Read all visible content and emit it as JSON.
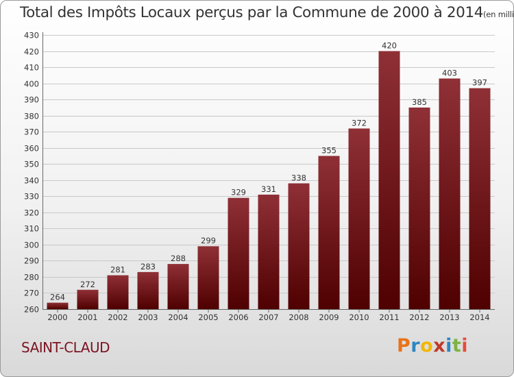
{
  "header": {
    "title": "Total des Impôts Locaux perçus par la Commune de 2000 à 2014",
    "unit": "(en milliers d'€)"
  },
  "footer": {
    "commune": "SAINT-CLAUD",
    "brand": "Proxiti"
  },
  "colors": {
    "bar_top": "#8f3036",
    "bar_bottom": "#4f0000",
    "commune_text": "#7a1320",
    "logo": [
      "#e8731a",
      "#2e86c1",
      "#f2b705",
      "#c0392b",
      "#2e86c1",
      "#7cb342",
      "#e74c3c"
    ]
  },
  "chart_data": {
    "type": "bar",
    "title": "Total des Impôts Locaux perçus par la Commune de 2000 à 2014",
    "ylabel": "en milliers d'€",
    "xlabel": "",
    "categories": [
      "2000",
      "2001",
      "2002",
      "2003",
      "2004",
      "2005",
      "2006",
      "2007",
      "2008",
      "2009",
      "2010",
      "2011",
      "2012",
      "2013",
      "2014"
    ],
    "values": [
      264,
      272,
      281,
      283,
      288,
      299,
      329,
      331,
      338,
      355,
      372,
      420,
      385,
      403,
      397
    ],
    "ylim": [
      260,
      430
    ],
    "yticks": [
      260,
      270,
      280,
      290,
      300,
      310,
      320,
      330,
      340,
      350,
      360,
      370,
      380,
      390,
      400,
      410,
      420,
      430
    ],
    "grid": true,
    "data_labels": true
  }
}
